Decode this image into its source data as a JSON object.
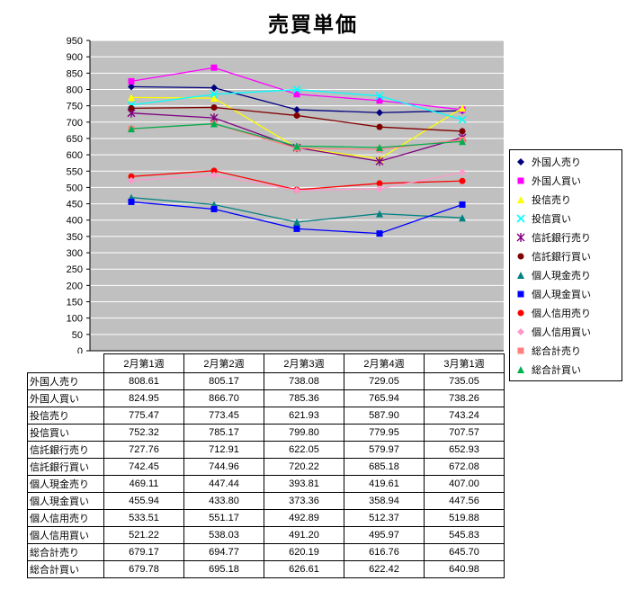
{
  "title": "売買単価",
  "chart_data": {
    "type": "line",
    "title": "売買単価",
    "categories": [
      "2月第1週",
      "2月第2週",
      "2月第3週",
      "2月第4週",
      "3月第1週"
    ],
    "series": [
      {
        "name": "外国人売り",
        "color": "#000080",
        "marker": "diamond",
        "values": [
          "808.61",
          "805.17",
          "738.08",
          "729.05",
          "735.05"
        ]
      },
      {
        "name": "外国人買い",
        "color": "#FF00FF",
        "marker": "square",
        "values": [
          "824.95",
          "866.70",
          "785.36",
          "765.94",
          "738.26"
        ]
      },
      {
        "name": "投信売り",
        "color": "#FFFF00",
        "marker": "triangle",
        "values": [
          "775.47",
          "773.45",
          "621.93",
          "587.90",
          "743.24"
        ]
      },
      {
        "name": "投信買い",
        "color": "#00FFFF",
        "marker": "x",
        "values": [
          "752.32",
          "785.17",
          "799.80",
          "779.95",
          "707.57"
        ]
      },
      {
        "name": "信託銀行売り",
        "color": "#800080",
        "marker": "asterisk",
        "values": [
          "727.76",
          "712.91",
          "622.05",
          "579.97",
          "652.93"
        ]
      },
      {
        "name": "信託銀行買い",
        "color": "#800000",
        "marker": "circle",
        "values": [
          "742.45",
          "744.96",
          "720.22",
          "685.18",
          "672.08"
        ]
      },
      {
        "name": "個人現金売り",
        "color": "#008080",
        "marker": "triangle",
        "values": [
          "469.11",
          "447.44",
          "393.81",
          "419.61",
          "407.00"
        ]
      },
      {
        "name": "個人現金買い",
        "color": "#0000FF",
        "marker": "square",
        "values": [
          "455.94",
          "433.80",
          "373.36",
          "358.94",
          "447.56"
        ]
      },
      {
        "name": "個人信用売り",
        "color": "#FF0000",
        "marker": "circle",
        "values": [
          "533.51",
          "551.17",
          "492.89",
          "512.37",
          "519.88"
        ]
      },
      {
        "name": "個人信用買い",
        "color": "#FF99CC",
        "marker": "diamond",
        "values": [
          "521.22",
          "538.03",
          "491.20",
          "495.97",
          "545.83"
        ]
      },
      {
        "name": "総合計売り",
        "color": "#FF8080",
        "marker": "square",
        "values": [
          "679.17",
          "694.77",
          "620.19",
          "616.76",
          "645.70"
        ]
      },
      {
        "name": "総合計買い",
        "color": "#00B050",
        "marker": "triangle",
        "values": [
          "679.78",
          "695.18",
          "626.61",
          "622.42",
          "640.98"
        ]
      }
    ],
    "ylim": [
      0,
      950
    ],
    "ytick": 50,
    "xlabel": "",
    "ylabel": "",
    "grid": true,
    "plot_bg": "#C0C0C0",
    "legend_position": "right"
  }
}
